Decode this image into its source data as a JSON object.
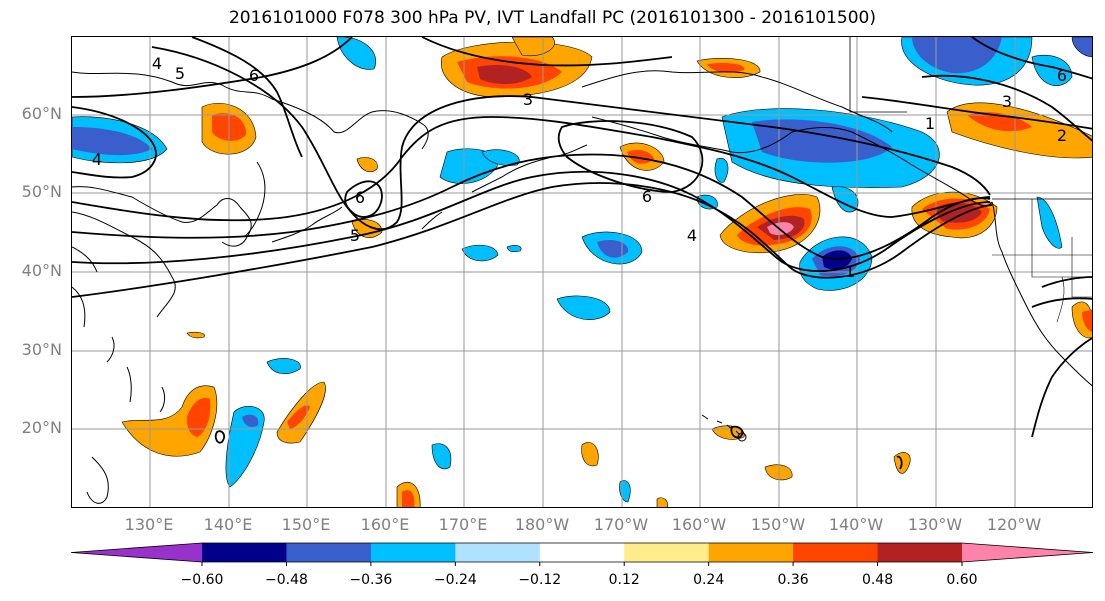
{
  "title": "2016101000 F078 300 hPa PV, IVT Landfall PC (2016101300 - 2016101500)",
  "lat_labels": [
    "60°N",
    "50°N",
    "40°N",
    "30°N",
    "20°N"
  ],
  "lon_labels": [
    "130°E",
    "140°E",
    "150°E",
    "160°E",
    "170°E",
    "180°W",
    "170°W",
    "160°W",
    "150°W",
    "140°W",
    "130°W",
    "120°W"
  ],
  "contour_labels": [
    "4",
    "5",
    "6",
    "6",
    "5",
    "3",
    "6",
    "4",
    "1",
    "1",
    "3",
    "2",
    "6",
    "4"
  ],
  "colorbar": {
    "colors": [
      "#9932CC",
      "#00008B",
      "#3A5FCD",
      "#00BFFF",
      "#B0E2FF",
      "#FFFFFF",
      "#FFEC8B",
      "#FFA500",
      "#FF4500",
      "#B22222",
      "#FF82AB"
    ],
    "ticks": [
      "−0.60",
      "−0.48",
      "−0.36",
      "−0.24",
      "−0.12",
      "0.12",
      "0.24",
      "0.36",
      "0.48",
      "0.60"
    ]
  }
}
